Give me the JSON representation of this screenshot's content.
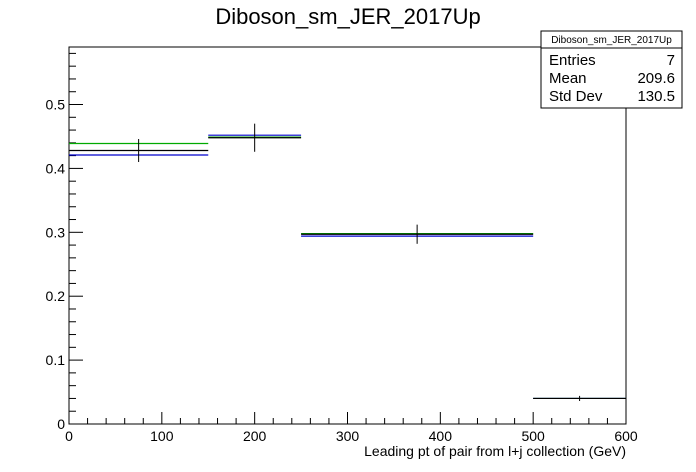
{
  "chart_data": {
    "type": "step-histogram",
    "title": "Diboson_sm_JER_2017Up",
    "xlabel": "Leading pt of pair from l+j collection (GeV)",
    "ylabel": "",
    "xlim": [
      0,
      600
    ],
    "ylim": [
      0,
      0.59
    ],
    "x_ticks": [
      0,
      100,
      200,
      300,
      400,
      500,
      600
    ],
    "x_tick_labels": [
      "0",
      "100",
      "200",
      "300",
      "400",
      "500",
      "600"
    ],
    "y_ticks": [
      0,
      0.1,
      0.2,
      0.3,
      0.4,
      0.5
    ],
    "y_tick_labels": [
      "0",
      "0.1",
      "0.2",
      "0.3",
      "0.4",
      "0.5"
    ],
    "grid": false,
    "bin_edges": [
      0,
      150,
      250,
      500,
      600
    ],
    "series": [
      {
        "color": "#000000",
        "values": [
          0.428,
          0.448,
          0.297,
          0.04
        ],
        "errors": [
          0.018,
          0.022,
          0.015,
          0.004
        ]
      },
      {
        "color": "#00aa00",
        "values": [
          0.439,
          0.449,
          0.298,
          0.04
        ]
      },
      {
        "color": "#0000cc",
        "values": [
          0.421,
          0.452,
          0.294,
          0.04
        ]
      }
    ],
    "stats_box": {
      "title": "Diboson_sm_JER_2017Up",
      "rows": [
        {
          "label": "Entries",
          "value": "7"
        },
        {
          "label": "Mean",
          "value": "209.6"
        },
        {
          "label": "Std Dev",
          "value": "130.5"
        }
      ]
    }
  }
}
